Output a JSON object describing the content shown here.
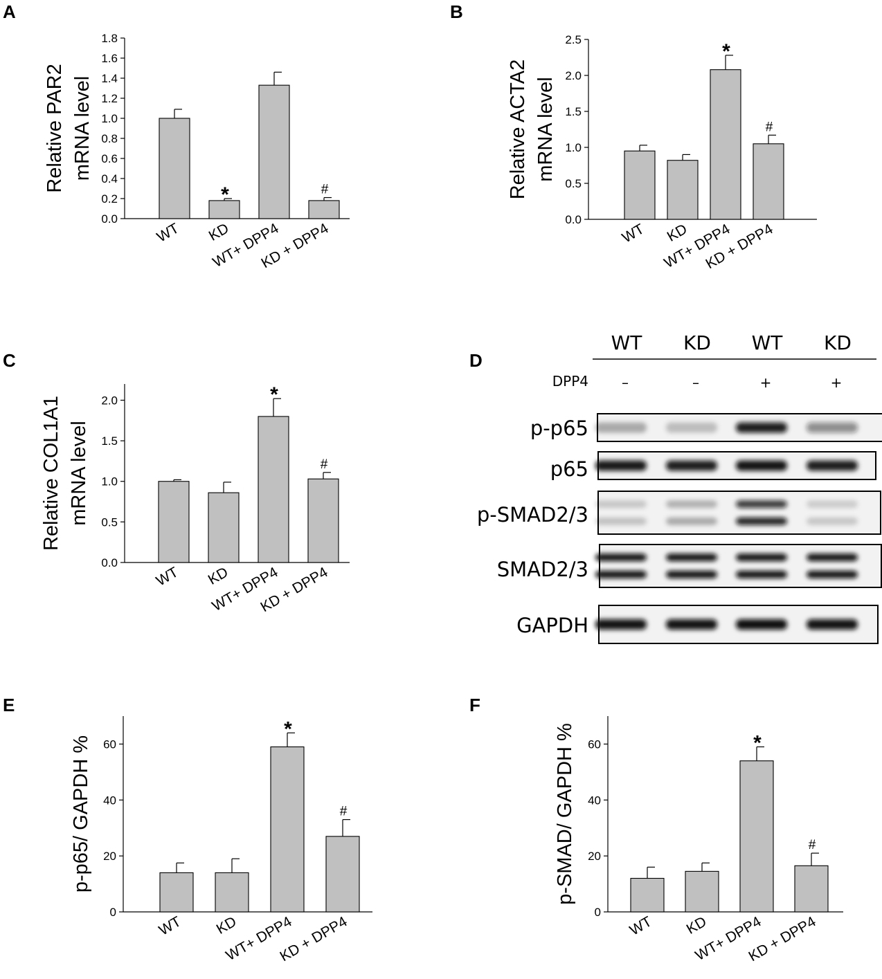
{
  "chart_data": [
    {
      "panel": "A",
      "type": "bar",
      "ylabel": [
        "Relative PAR2",
        "mRNA level"
      ],
      "categories": [
        "WT",
        "KD",
        "WT+ DPP4",
        "KD + DPP4"
      ],
      "values": [
        1.0,
        0.18,
        1.33,
        0.18
      ],
      "errors": [
        0.09,
        0.02,
        0.13,
        0.03
      ],
      "significance": [
        "",
        "*",
        "",
        "#"
      ],
      "ylim": [
        0,
        1.8
      ],
      "yticks": [
        0.0,
        0.2,
        0.4,
        0.6,
        0.8,
        1.0,
        1.2,
        1.4,
        1.6,
        1.8
      ],
      "ytick_decimals": 1
    },
    {
      "panel": "B",
      "type": "bar",
      "ylabel": [
        "Relative ACTA2",
        "mRNA level"
      ],
      "categories": [
        "WT",
        "KD",
        "WT+ DPP4",
        "KD + DPP4"
      ],
      "values": [
        0.95,
        0.82,
        2.08,
        1.05
      ],
      "errors": [
        0.08,
        0.08,
        0.2,
        0.12
      ],
      "significance": [
        "",
        "",
        "*",
        "#"
      ],
      "ylim": [
        0,
        2.5
      ],
      "yticks": [
        0.0,
        0.5,
        1.0,
        1.5,
        2.0,
        2.5
      ],
      "ytick_decimals": 1
    },
    {
      "panel": "C",
      "type": "bar",
      "ylabel": [
        "Relative COL1A1",
        "mRNA level"
      ],
      "categories": [
        "WT",
        "KD",
        "WT+ DPP4",
        "KD + DPP4"
      ],
      "values": [
        1.0,
        0.86,
        1.8,
        1.03
      ],
      "errors": [
        0.02,
        0.13,
        0.22,
        0.08
      ],
      "significance": [
        "",
        "",
        "*",
        "#"
      ],
      "ylim": [
        0,
        2.2
      ],
      "yticks": [
        0.0,
        0.5,
        1.0,
        1.5,
        2.0
      ],
      "ytick_decimals": 1
    },
    {
      "panel": "E",
      "type": "bar",
      "ylabel": [
        "p-p65/ GAPDH %"
      ],
      "categories": [
        "WT",
        "KD",
        "WT+ DPP4",
        "KD + DPP4"
      ],
      "values": [
        14,
        14,
        59,
        27
      ],
      "errors": [
        3.5,
        5,
        5,
        6
      ],
      "significance": [
        "",
        "",
        "*",
        "#"
      ],
      "ylim": [
        0,
        70
      ],
      "yticks": [
        0,
        20,
        40,
        60
      ],
      "ytick_decimals": 0
    },
    {
      "panel": "F",
      "type": "bar",
      "ylabel": [
        "p-SMAD/ GAPDH %"
      ],
      "categories": [
        "WT",
        "KD",
        "WT+ DPP4",
        "KD + DPP4"
      ],
      "values": [
        12,
        14.5,
        54,
        16.5
      ],
      "errors": [
        4,
        3,
        5,
        4.5
      ],
      "significance": [
        "",
        "",
        "*",
        "#"
      ],
      "ylim": [
        0,
        70
      ],
      "yticks": [
        0,
        20,
        40,
        60
      ],
      "ytick_decimals": 0
    }
  ],
  "western_blot": {
    "panel": "D",
    "lane_groups": [
      "WT",
      "KD",
      "WT",
      "KD"
    ],
    "treatment_label": "DPP4",
    "treatment": [
      "–",
      "–",
      "+",
      "+"
    ],
    "rows": [
      {
        "label": "p-p65",
        "bands": 1,
        "intensity": [
          0.3,
          0.22,
          0.92,
          0.45
        ]
      },
      {
        "label": "p65",
        "bands": 1,
        "intensity": [
          0.95,
          0.92,
          0.97,
          0.92
        ]
      },
      {
        "label": "p-SMAD2/3",
        "bands": 2,
        "intensity": [
          0.2,
          0.3,
          0.9,
          0.18
        ]
      },
      {
        "label": "SMAD2/3",
        "bands": 2,
        "intensity": [
          0.97,
          0.97,
          0.97,
          0.97
        ]
      },
      {
        "label": "GAPDH",
        "bands": 1,
        "intensity": [
          0.97,
          0.97,
          0.99,
          0.97
        ]
      }
    ]
  }
}
